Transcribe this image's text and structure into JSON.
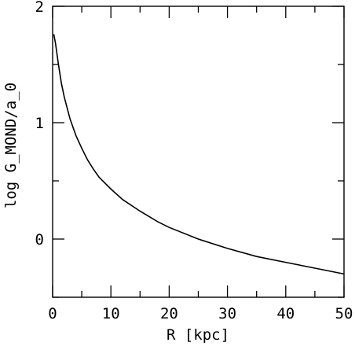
{
  "chart_data": {
    "type": "line",
    "title": "",
    "xlabel": "R [kpc]",
    "ylabel": "log G_MOND/a_0",
    "xlim": [
      0,
      50
    ],
    "ylim": [
      -0.5,
      2
    ],
    "x_ticks": [
      {
        "value": 0,
        "label": "0"
      },
      {
        "value": 10,
        "label": "10"
      },
      {
        "value": 20,
        "label": "20"
      },
      {
        "value": 30,
        "label": "30"
      },
      {
        "value": 40,
        "label": "40"
      },
      {
        "value": 50,
        "label": "50"
      }
    ],
    "y_ticks": [
      {
        "value": 0,
        "label": "0"
      },
      {
        "value": 1,
        "label": "1"
      },
      {
        "value": 2,
        "label": "2"
      }
    ],
    "x_minor_step": 5,
    "y_minor_step": 0.5,
    "grid": false,
    "series": [
      {
        "color": "#000000",
        "x": [
          0.2,
          0.5,
          1,
          1.5,
          2,
          3,
          4,
          5,
          6,
          7,
          8,
          10,
          12,
          15,
          18,
          20,
          25,
          30,
          35,
          40,
          45,
          50
        ],
        "y": [
          1.76,
          1.68,
          1.5,
          1.34,
          1.22,
          1.03,
          0.89,
          0.78,
          0.68,
          0.6,
          0.53,
          0.43,
          0.34,
          0.24,
          0.15,
          0.1,
          0.0,
          -0.08,
          -0.15,
          -0.2,
          -0.25,
          -0.3
        ]
      }
    ]
  }
}
